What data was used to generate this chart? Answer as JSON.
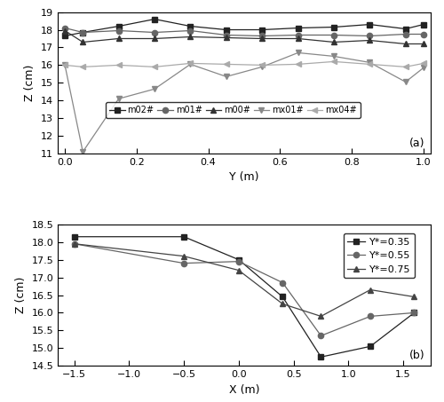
{
  "panel_a": {
    "title": "(a)",
    "xlabel": "Y (m)",
    "ylabel": "Z (cm)",
    "ylim": [
      11,
      19
    ],
    "xlim": [
      -0.02,
      1.02
    ],
    "yticks": [
      11,
      12,
      13,
      14,
      15,
      16,
      17,
      18,
      19
    ],
    "xticks": [
      0.0,
      0.2,
      0.4,
      0.6,
      0.8,
      1.0
    ],
    "series": {
      "m02#": {
        "x": [
          0.0,
          0.05,
          0.15,
          0.25,
          0.35,
          0.45,
          0.55,
          0.65,
          0.75,
          0.85,
          0.95,
          1.0
        ],
        "y": [
          17.65,
          17.85,
          18.2,
          18.6,
          18.2,
          18.0,
          18.0,
          18.1,
          18.15,
          18.3,
          18.05,
          18.3
        ],
        "marker": "s",
        "color": "#222222",
        "linestyle": "-"
      },
      "m01#": {
        "x": [
          0.0,
          0.05,
          0.15,
          0.25,
          0.35,
          0.45,
          0.55,
          0.65,
          0.75,
          0.85,
          0.95,
          1.0
        ],
        "y": [
          18.1,
          17.85,
          17.95,
          17.85,
          17.95,
          17.7,
          17.65,
          17.7,
          17.7,
          17.65,
          17.75,
          17.75
        ],
        "marker": "o",
        "color": "#666666",
        "linestyle": "-"
      },
      "m00#": {
        "x": [
          0.0,
          0.05,
          0.15,
          0.25,
          0.35,
          0.45,
          0.55,
          0.65,
          0.75,
          0.85,
          0.95,
          1.0
        ],
        "y": [
          17.95,
          17.3,
          17.5,
          17.5,
          17.6,
          17.55,
          17.5,
          17.5,
          17.3,
          17.4,
          17.2,
          17.2
        ],
        "marker": "^",
        "color": "#333333",
        "linestyle": "-"
      },
      "mx01#": {
        "x": [
          0.0,
          0.05,
          0.15,
          0.25,
          0.35,
          0.45,
          0.55,
          0.65,
          0.75,
          0.85,
          0.95,
          1.0
        ],
        "y": [
          16.0,
          11.1,
          14.1,
          14.65,
          16.05,
          15.35,
          15.9,
          16.7,
          16.5,
          16.15,
          15.05,
          15.85
        ],
        "marker": "v",
        "color": "#888888",
        "linestyle": "-"
      },
      "mx04#": {
        "x": [
          0.0,
          0.05,
          0.15,
          0.25,
          0.35,
          0.45,
          0.55,
          0.65,
          0.75,
          0.85,
          0.95,
          1.0
        ],
        "y": [
          16.0,
          15.9,
          16.0,
          15.9,
          16.1,
          16.05,
          16.0,
          16.05,
          16.2,
          16.05,
          15.9,
          16.1
        ],
        "marker": "<",
        "color": "#aaaaaa",
        "linestyle": "-"
      }
    }
  },
  "panel_b": {
    "title": "(b)",
    "xlabel": "X (m)",
    "ylabel": "Z (cm)",
    "ylim": [
      14.5,
      18.5
    ],
    "xlim": [
      -1.65,
      1.75
    ],
    "yticks": [
      14.5,
      15.0,
      15.5,
      16.0,
      16.5,
      17.0,
      17.5,
      18.0,
      18.5
    ],
    "xticks": [
      -1.5,
      -1.0,
      -0.5,
      0.0,
      0.5,
      1.0,
      1.5
    ],
    "series": {
      "Y*=0.35": {
        "x": [
          -1.5,
          -0.5,
          0.0,
          0.4,
          0.75,
          1.2,
          1.6
        ],
        "y": [
          18.15,
          18.15,
          17.5,
          16.45,
          14.75,
          15.05,
          16.0
        ],
        "marker": "s",
        "color": "#222222",
        "linestyle": "-"
      },
      "Y*=0.55": {
        "x": [
          -1.5,
          -0.5,
          0.0,
          0.4,
          0.75,
          1.2,
          1.6
        ],
        "y": [
          17.95,
          17.4,
          17.45,
          16.85,
          15.35,
          15.9,
          16.0
        ],
        "marker": "o",
        "color": "#666666",
        "linestyle": "-"
      },
      "Y*=0.75": {
        "x": [
          -1.5,
          -0.5,
          0.0,
          0.4,
          0.75,
          1.2,
          1.6
        ],
        "y": [
          17.95,
          17.6,
          17.2,
          16.25,
          15.9,
          16.65,
          16.45
        ],
        "marker": "^",
        "color": "#444444",
        "linestyle": "-"
      }
    }
  }
}
